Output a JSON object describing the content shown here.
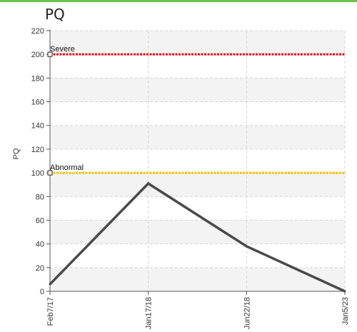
{
  "chart_data": {
    "type": "line",
    "title": "PQ",
    "ylabel": "PQ",
    "xlabel": "",
    "ylim": [
      0,
      220
    ],
    "yticks": [
      "0",
      "20",
      "40",
      "60",
      "80",
      "100",
      "120",
      "140",
      "160",
      "180",
      "200",
      "220"
    ],
    "categories": [
      "Feb7/17",
      "Jan17/18",
      "Jun22/18",
      "Jan5/23"
    ],
    "series": [
      {
        "values": [
          6,
          91,
          38,
          0
        ],
        "color": "#4a4a4a"
      }
    ],
    "thresholds": [
      {
        "label": "Severe",
        "value": 200,
        "color": "#e8141e"
      },
      {
        "label": "Abnormal",
        "value": 100,
        "color": "#f2c200"
      }
    ],
    "grid": true,
    "alternate_bands": true
  }
}
